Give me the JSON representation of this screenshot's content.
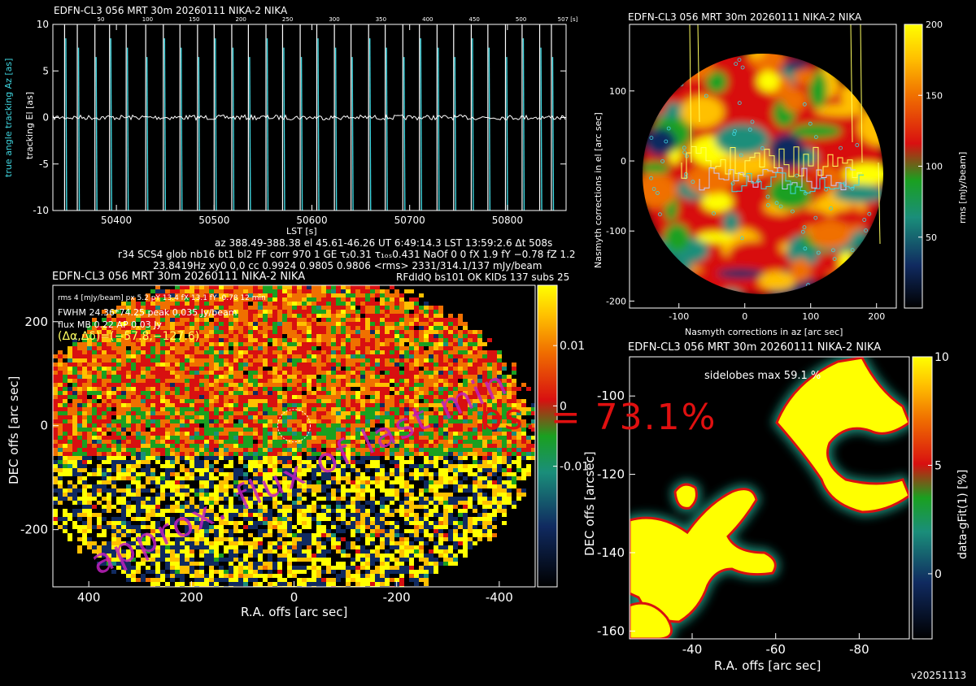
{
  "panels": {
    "top_title": "EDFN-CL3 056 MRT 30m  20260111 NIKA-2 NIKA",
    "right_title": "EDFN-CL3 056 MRT 30m  20260111 NIKA-2 NIKA",
    "map_title": "EDFN-CL3 056 MRT 30m  20260111 NIKA-2 NIKA",
    "beam_title": "EDFN-CL3 056 MRT 30m  20260111 NIKA-2 NIKA"
  },
  "info": {
    "line1": "az 388.49-388.38  el 45.61-46.26  UT 6:49:14.3  LST 13:59:2.6  Δt 508s",
    "line2": "r34 SCS4 glob nb16 bt1 bl2 FF corr 970 1 GE τ₂0.31 τ₁ₒₛ0.431 NaOf 0 0 fX 1.9 fY −0.78 fZ 1.2",
    "line3": "23.8419Hz xy0 0,0 cc 0.9924 0.9805 0.9806 <rms> 2331/314.1/137 mJy/beam",
    "line4": "RFdIdQ bs101 OK KIDs 137 subs 25"
  },
  "map_overlay": {
    "line1": "rms 4 [mJy/beam] px 5.2  pY 13.4  fX 13.1  fY -0.78  12 min",
    "line2": "FWHM 24.36*74.25  peak 0.035 Jy/beam",
    "line3": "flux MB 0.22 AP 0.03 Jy",
    "line4": "(Δα,Δδ)=(−57.8,−127.6)"
  },
  "beam_overlay": {
    "sidelobes": "sidelobes max 59.1 %"
  },
  "watermarks": {
    "big_red": "bs. = 73.1%",
    "magenta": "approx. flux of last min"
  },
  "version": "v20251113",
  "colors": {
    "cyan": "#3fd6e0",
    "magenta": "#c020c0",
    "red_text": "#e01010",
    "yellow": "#ffff00"
  },
  "chart_data": [
    {
      "type": "line",
      "name": "tracking",
      "xlabel": "LST [s]",
      "ylabel_left_cyan": "true angle tracking Az [as]",
      "ylabel_left_white": "tracking El [as]",
      "xlim": [
        50335,
        50860
      ],
      "ylim": [
        -10,
        10
      ],
      "xticks": [
        50400,
        50500,
        50600,
        50700,
        50800
      ],
      "yticks": [
        10,
        5,
        0,
        -5,
        -10
      ],
      "top_ticks": [
        "50",
        "100",
        "150",
        "200",
        "250",
        "300",
        "350",
        "400",
        "450",
        "500",
        "507 [s]"
      ],
      "subscan_lst": [
        50347,
        50360,
        50378,
        50393,
        50410,
        50430,
        50448,
        50465,
        50483,
        50500,
        50518,
        50535,
        50553,
        50570,
        50588,
        50605,
        50623,
        50640,
        50658,
        50675,
        50693,
        50710,
        50728,
        50745,
        50763,
        50780,
        50798,
        50815,
        50833,
        50845
      ]
    },
    {
      "type": "heatmap",
      "name": "nasmyth",
      "xlabel": "Nasmyth corrections in az [arc sec]",
      "ylabel": "Nasmyth corrections in el [arc sec]",
      "colorbar_label": "rms [mJy/beam]",
      "xlim": [
        -175,
        230
      ],
      "ylim": [
        -210,
        195
      ],
      "xticks": [
        -100,
        0,
        100,
        200
      ],
      "yticks": [
        100,
        0,
        -100,
        -200
      ],
      "cbar_range": [
        0,
        200
      ],
      "cbar_ticks": [
        200,
        150,
        100,
        50
      ]
    },
    {
      "type": "heatmap",
      "name": "map",
      "xlabel": "R.A. offs [arc sec]",
      "ylabel": "DEC offs [arc sec]",
      "xlim": [
        470,
        -470
      ],
      "ylim": [
        -310,
        270
      ],
      "xticks": [
        400,
        200,
        0,
        -200,
        -400
      ],
      "yticks": [
        200,
        0,
        -200
      ],
      "cbar_range": [
        -0.03,
        0.02
      ],
      "cbar_ticks": [
        "0.01",
        "0",
        "-0.01"
      ]
    },
    {
      "type": "heatmap",
      "name": "beam",
      "xlabel": "R.A. offs [arc sec]",
      "ylabel": "DEC offs [arcsec]",
      "colorbar_label": "data-gFit(1) [%]",
      "xlim": [
        -25,
        -92
      ],
      "ylim": [
        -162,
        -90
      ],
      "xticks": [
        -40,
        -60,
        -80
      ],
      "yticks": [
        -100,
        -120,
        -140,
        -160
      ],
      "cbar_range": [
        -3,
        10
      ],
      "cbar_ticks": [
        10,
        5,
        0
      ]
    }
  ]
}
